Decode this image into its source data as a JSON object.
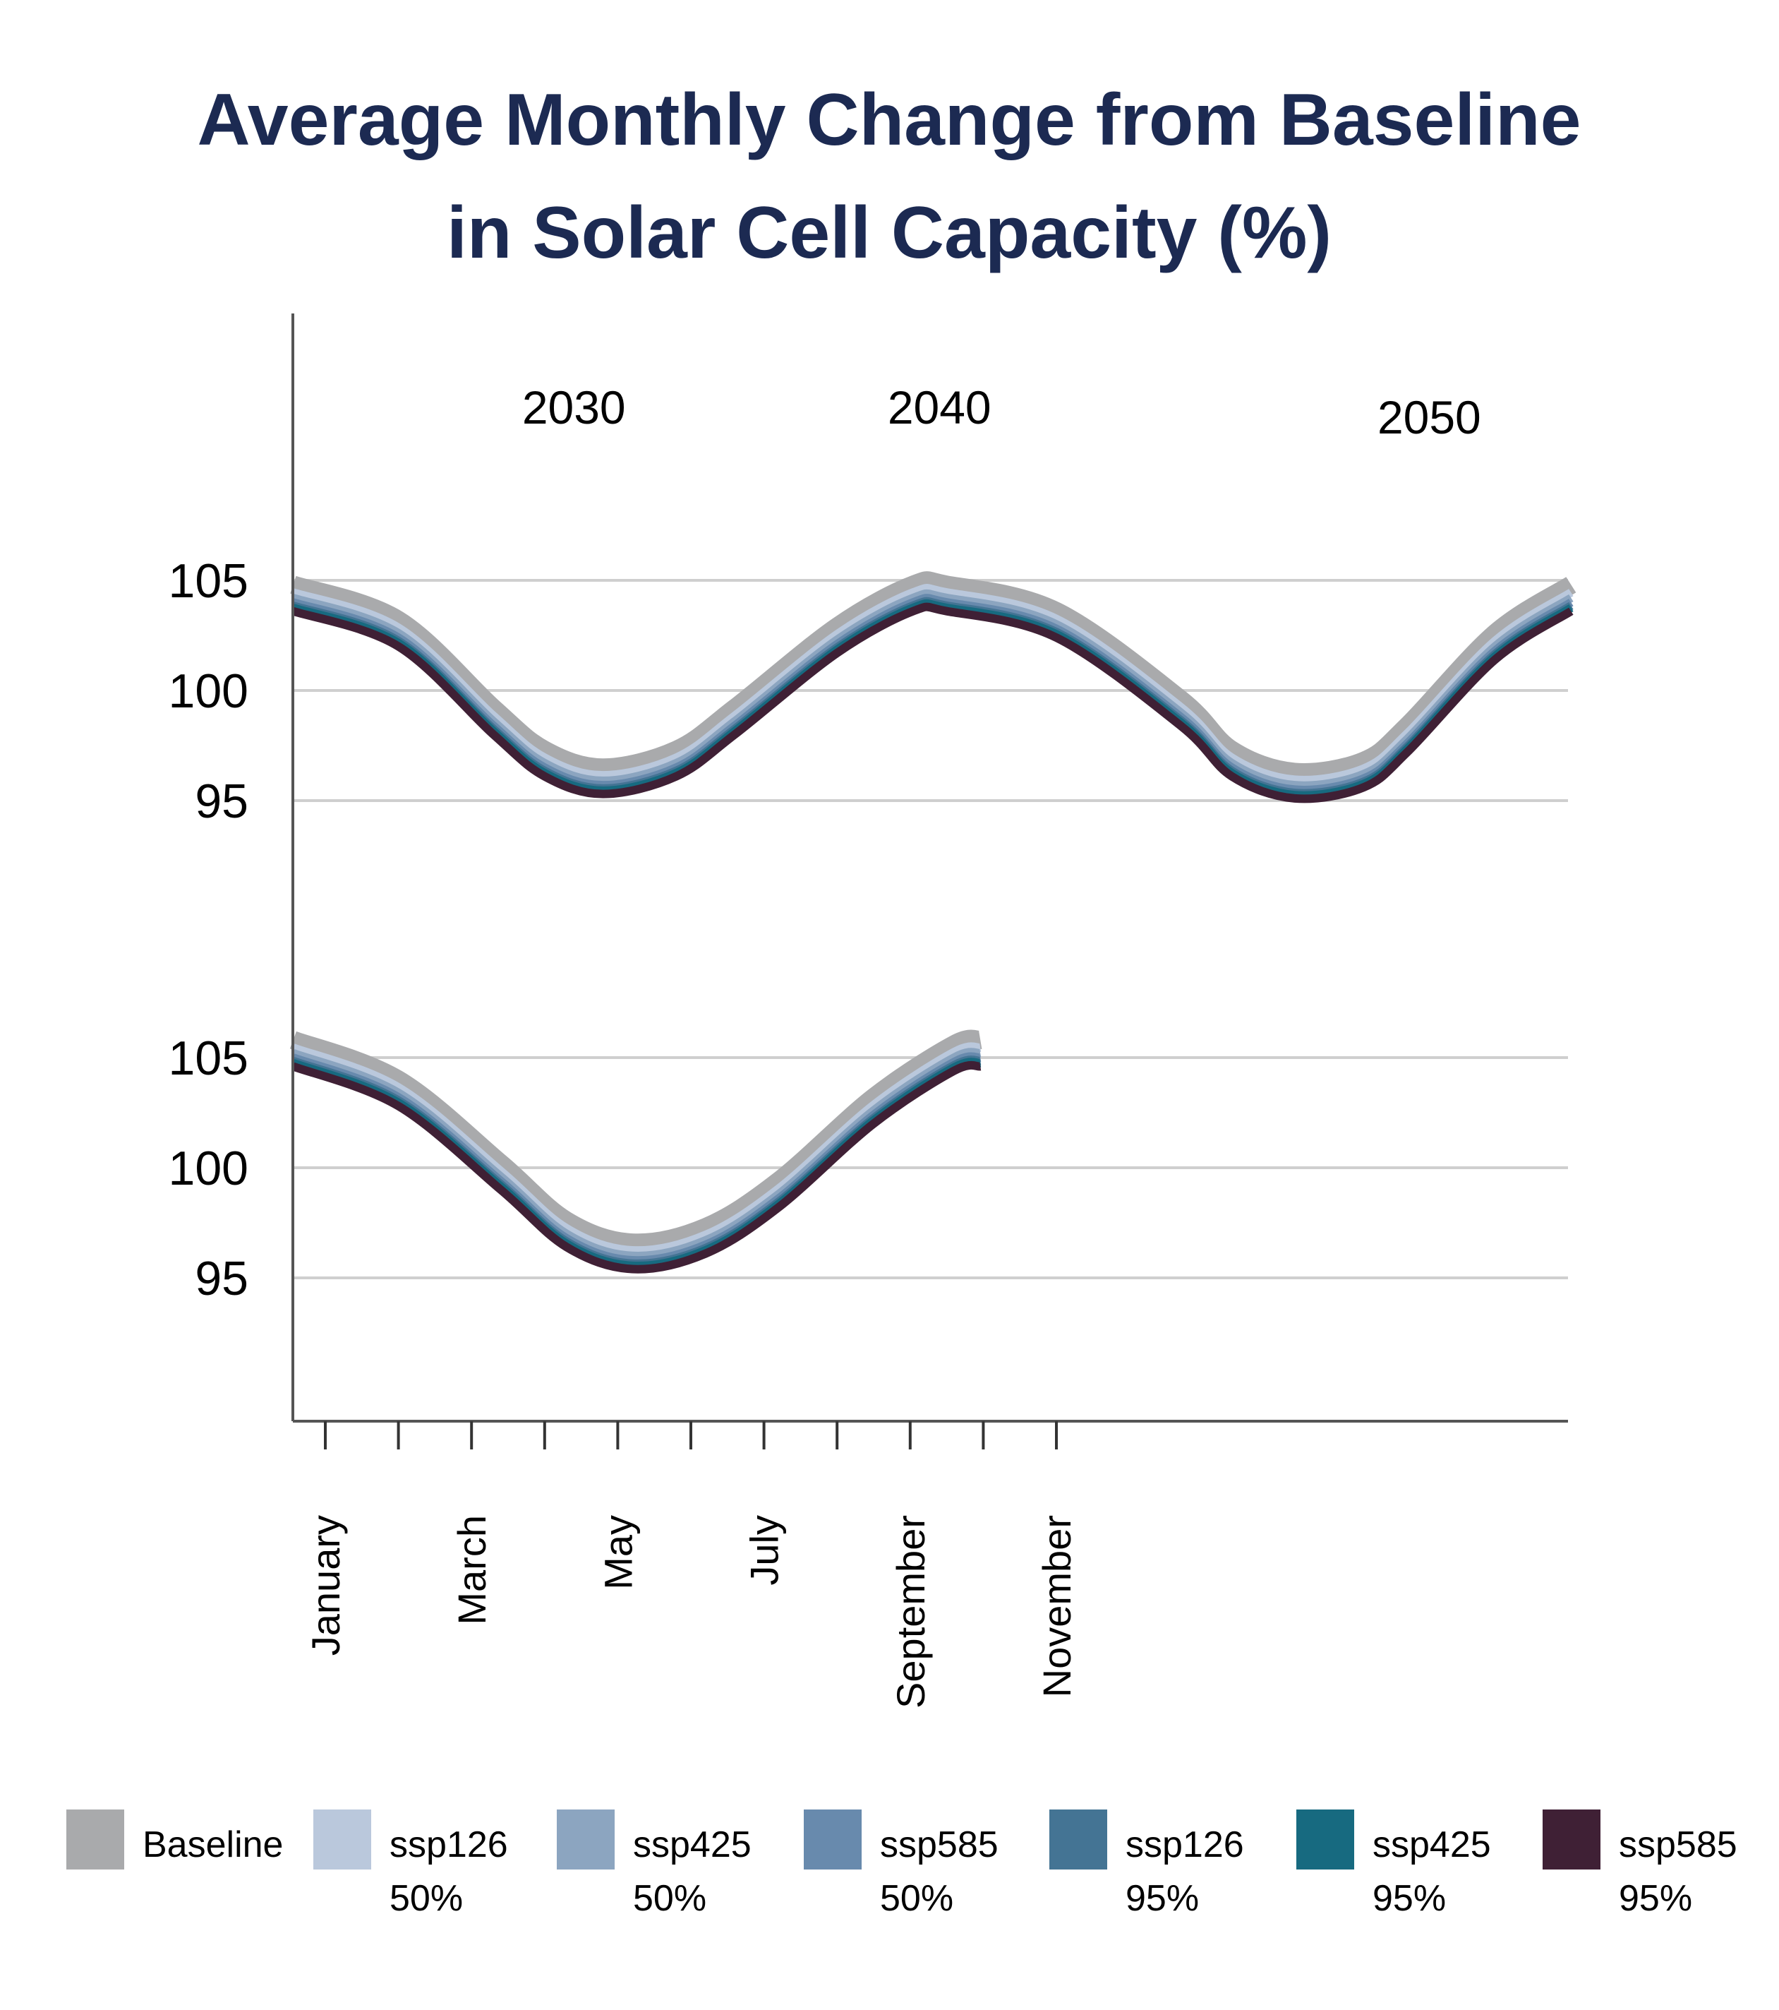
{
  "chart_data": {
    "type": "line",
    "title": [
      "Average Monthly Change from Baseline",
      "in Solar Cell Capacity (%)"
    ],
    "xlabel": "",
    "ylabel": "",
    "x_unit": "month index (January = 1)",
    "x_tick_labels": [
      "January",
      "March",
      "May",
      "July",
      "September",
      "November"
    ],
    "x_tick_months": [
      1,
      3,
      5,
      7,
      9,
      11
    ],
    "x_minor_ticks": [
      1,
      2,
      3,
      4,
      5,
      6,
      7,
      8,
      9,
      10,
      11
    ],
    "annotations": [
      {
        "text": "2030",
        "month": 4.4
      },
      {
        "text": "2040",
        "month": 9.4
      },
      {
        "text": "2050",
        "month": 16.1
      }
    ],
    "grid": true,
    "legend_position": "bottom",
    "panels": [
      {
        "name": "top",
        "ylim": [
          88,
          112
        ],
        "yticks": [
          95,
          100,
          105
        ],
        "baseline_points": [
          [
            0.56,
            104.8
          ],
          [
            2,
            103.2
          ],
          [
            3.3,
            99.2
          ],
          [
            4,
            97.3
          ],
          [
            4.8,
            96.5
          ],
          [
            5.8,
            97.3
          ],
          [
            6.6,
            99.2
          ],
          [
            8,
            102.9
          ],
          [
            9.04,
            104.8
          ],
          [
            9.5,
            104.8
          ],
          [
            11,
            103.6
          ],
          [
            12.7,
            99.6
          ],
          [
            13.4,
            97.3
          ],
          [
            14.26,
            96.3
          ],
          [
            15.2,
            96.8
          ],
          [
            15.8,
            98.4
          ],
          [
            17,
            102.6
          ],
          [
            18.04,
            104.8
          ]
        ]
      },
      {
        "name": "bottom",
        "ylim": [
          88.5,
          112.5
        ],
        "yticks": [
          95,
          100,
          105
        ],
        "baseline_points": [
          [
            0.56,
            105.8
          ],
          [
            2,
            104.0
          ],
          [
            3.4,
            100.2
          ],
          [
            4.3,
            97.6
          ],
          [
            5.2,
            96.6
          ],
          [
            6.2,
            97.3
          ],
          [
            7.2,
            99.4
          ],
          [
            8.5,
            103.2
          ],
          [
            9.6,
            105.6
          ],
          [
            9.96,
            105.8
          ]
        ]
      }
    ],
    "series": [
      {
        "name": "Baseline",
        "line2": "",
        "offset": 0,
        "color": "#a9aaac"
      },
      {
        "name": "ssp126",
        "line2": "50%",
        "offset": -0.35,
        "color": "#bac8dc"
      },
      {
        "name": "ssp425",
        "line2": "50%",
        "offset": -0.6,
        "color": "#8ca5c0"
      },
      {
        "name": "ssp585",
        "line2": "50%",
        "offset": -0.8,
        "color": "#688aad"
      },
      {
        "name": "ssp126",
        "line2": "95%",
        "offset": -0.95,
        "color": "#447494"
      },
      {
        "name": "ssp425",
        "line2": "95%",
        "offset": -1.05,
        "color": "#176a80"
      },
      {
        "name": "ssp585",
        "line2": "95%",
        "offset": -1.2,
        "color": "#3f2035"
      }
    ]
  }
}
